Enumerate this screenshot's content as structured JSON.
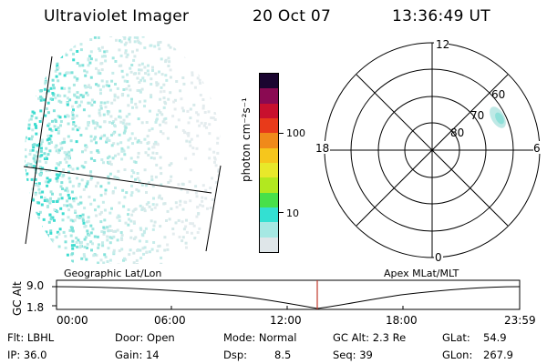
{
  "header": {
    "instrument": "Ultraviolet Imager",
    "date": "20 Oct 07",
    "time": "13:36:49 UT"
  },
  "colorbar": {
    "unit_label": "photon cm⁻²s⁻¹",
    "ticks": [
      "100",
      "10"
    ],
    "colors": [
      "#dfe6e9",
      "#a6e8e3",
      "#33e0d2",
      "#48e04a",
      "#b2e81f",
      "#e8e82a",
      "#f6c61c",
      "#f08a1a",
      "#e83a1a",
      "#c8102e",
      "#8a0a52",
      "#1a0530"
    ]
  },
  "polar_plot": {
    "mlt_labels": [
      "12",
      "18",
      "6",
      "0"
    ],
    "lat_labels": [
      "60",
      "70",
      "80"
    ]
  },
  "timeline": {
    "left_caption": "Geographic Lat/Lon",
    "right_caption": "Apex MLat/MLT",
    "ylabel": "GC Alt",
    "yticks": [
      "9.0",
      "1.8"
    ],
    "xticks": [
      "00:00",
      "06:00",
      "12:00",
      "18:00",
      "23:59"
    ],
    "marker_color": "#c0392b"
  },
  "footer": {
    "flt": "Flt: LBHL",
    "ip": "IP: 36.0",
    "door": "Door: Open",
    "gain": "Gain: 14",
    "mode": "Mode: Normal",
    "dsp_label": "Dsp:",
    "dsp_value": "8.5",
    "gc_alt": "GC Alt: 2.3 Re",
    "seq": "Seq: 39",
    "glat_label": "GLat:",
    "glat_value": "54.9",
    "glon_label": "GLon:",
    "glon_value": "267.9"
  }
}
